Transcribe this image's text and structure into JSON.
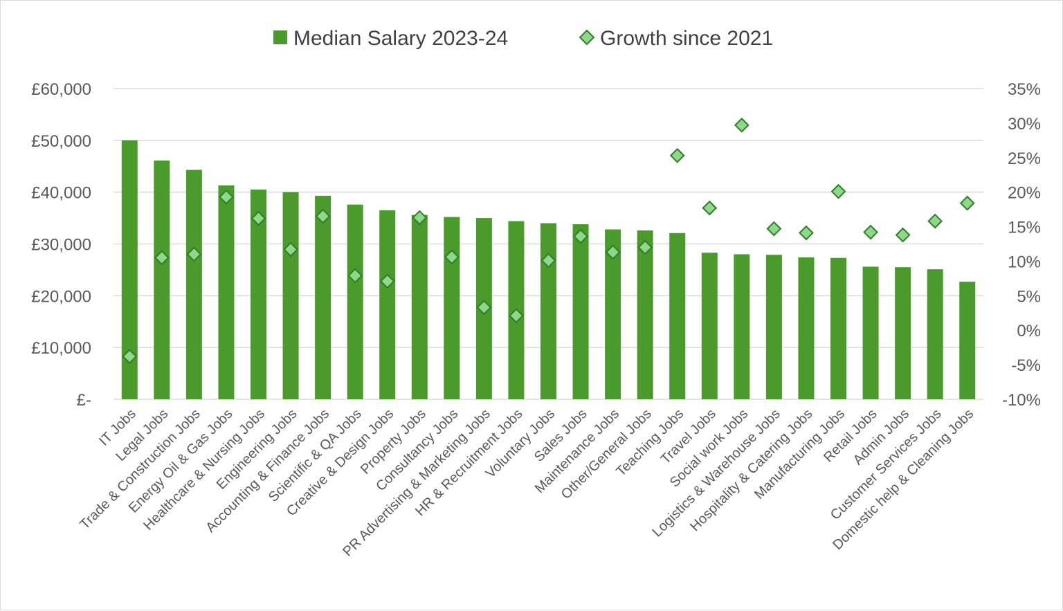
{
  "chart_data": {
    "type": "bar",
    "title": "",
    "categories": [
      "IT Jobs",
      "Legal Jobs",
      "Trade & Construction Jobs",
      "Energy Oil & Gas Jobs",
      "Healthcare & Nursing Jobs",
      "Engineering Jobs",
      "Accounting & Finance Jobs",
      "Scientific & QA Jobs",
      "Creative & Design Jobs",
      "Property Jobs",
      "Consultancy Jobs",
      "PR Advertising & Marketing Jobs",
      "HR & Recruitment Jobs",
      "Voluntary Jobs",
      "Sales Jobs",
      "Maintenance Jobs",
      "Other/General Jobs",
      "Teaching Jobs",
      "Travel Jobs",
      "Social work Jobs",
      "Logistics & Warehouse Jobs",
      "Hospitality & Catering Jobs",
      "Manufacturing Jobs",
      "Retail Jobs",
      "Admin Jobs",
      "Customer Services Jobs",
      "Domestic help & Cleaning Jobs"
    ],
    "series": [
      {
        "name": "Median Salary 2023-24",
        "type": "bar",
        "axis": "left",
        "color": "#4a9a2c",
        "values": [
          50000,
          46100,
          44300,
          41300,
          40500,
          40000,
          39300,
          37600,
          36500,
          35600,
          35200,
          35000,
          34400,
          34000,
          33800,
          32800,
          32600,
          32100,
          28300,
          28000,
          27900,
          27400,
          27300,
          25600,
          25500,
          25100,
          22700
        ]
      },
      {
        "name": "Growth since 2021",
        "type": "scatter",
        "axis": "right",
        "marker": "diamond",
        "fill": "#8fd88a",
        "stroke": "#2e7d27",
        "values": [
          -3.8,
          10.5,
          11.0,
          19.3,
          16.2,
          11.7,
          16.5,
          7.9,
          7.1,
          16.3,
          10.6,
          3.3,
          2.1,
          10.1,
          13.6,
          11.3,
          12.0,
          25.3,
          17.7,
          29.7,
          14.7,
          14.1,
          20.1,
          14.2,
          13.8,
          15.8,
          18.4
        ]
      }
    ],
    "y_left": {
      "ylim": [
        0,
        60000
      ],
      "tick_labels": [
        "£-",
        "£10,000",
        "£20,000",
        "£30,000",
        "£40,000",
        "£50,000",
        "£60,000"
      ]
    },
    "y_right": {
      "ylim": [
        -10,
        35
      ],
      "tick_labels": [
        "-10%",
        "-5%",
        "0%",
        "5%",
        "10%",
        "15%",
        "20%",
        "25%",
        "30%",
        "35%"
      ]
    },
    "xlabel": "",
    "ylabel": "",
    "grid": true,
    "legend": "top-center"
  }
}
